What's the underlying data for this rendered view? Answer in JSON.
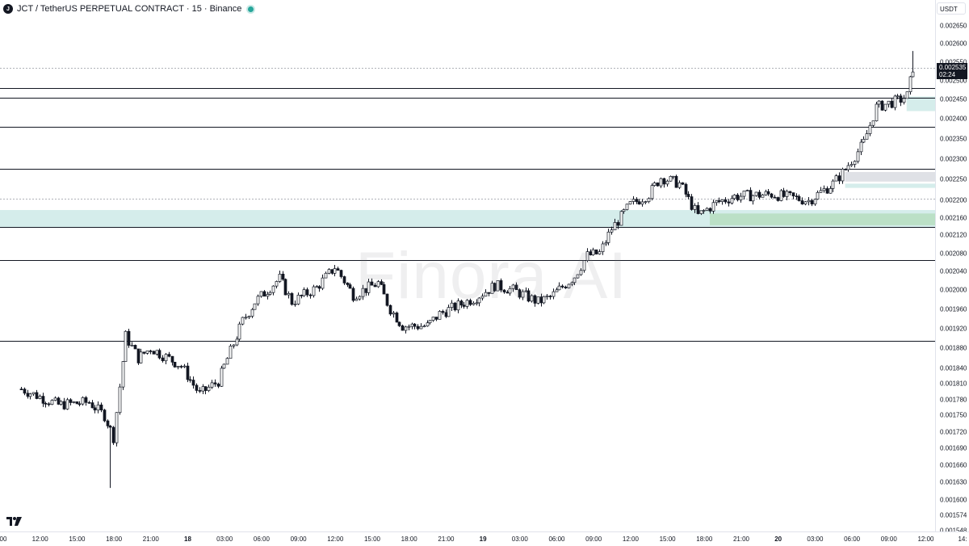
{
  "header": {
    "symbol_icon": "JCT logo",
    "title": "JCT / TetherUS PERPETUAL CONTRACT · 15 · Binance",
    "status": "market-open"
  },
  "watermark": "Finora AI",
  "price_scale": {
    "currency": "USDT",
    "ticks": [
      "0.002650",
      "0.002600",
      "0.002550",
      "0.002500",
      "0.002450",
      "0.002400",
      "0.002350",
      "0.002300",
      "0.002250",
      "0.002200",
      "0.002160",
      "0.002120",
      "0.002080",
      "0.002040",
      "0.002000",
      "0.001960",
      "0.001920",
      "0.001880",
      "0.001840",
      "0.001810",
      "0.001780",
      "0.001750",
      "0.001720",
      "0.001690",
      "0.001660",
      "0.001630",
      "0.001600",
      "0.001574",
      "0.001548"
    ],
    "current_price": "0.002535",
    "countdown": "02:24"
  },
  "time_scale": {
    "ticks": [
      {
        "label": "00",
        "bold": false
      },
      {
        "label": "12:00",
        "bold": false
      },
      {
        "label": "15:00",
        "bold": false
      },
      {
        "label": "18:00",
        "bold": false
      },
      {
        "label": "21:00",
        "bold": false
      },
      {
        "label": "18",
        "bold": true
      },
      {
        "label": "03:00",
        "bold": false
      },
      {
        "label": "06:00",
        "bold": false
      },
      {
        "label": "09:00",
        "bold": false
      },
      {
        "label": "12:00",
        "bold": false
      },
      {
        "label": "15:00",
        "bold": false
      },
      {
        "label": "18:00",
        "bold": false
      },
      {
        "label": "21:00",
        "bold": false
      },
      {
        "label": "19",
        "bold": true
      },
      {
        "label": "03:00",
        "bold": false
      },
      {
        "label": "06:00",
        "bold": false
      },
      {
        "label": "09:00",
        "bold": false
      },
      {
        "label": "12:00",
        "bold": false
      },
      {
        "label": "15:00",
        "bold": false
      },
      {
        "label": "18:00",
        "bold": false
      },
      {
        "label": "21:00",
        "bold": false
      },
      {
        "label": "20",
        "bold": true
      },
      {
        "label": "03:00",
        "bold": false
      },
      {
        "label": "06:00",
        "bold": false
      },
      {
        "label": "09:00",
        "bold": false
      },
      {
        "label": "12:00",
        "bold": false
      },
      {
        "label": "14:",
        "bold": false
      }
    ]
  },
  "colors": {
    "up": "#ffffff",
    "down": "#131722",
    "wick": "#131722",
    "zone_teal": "#b2dfdb",
    "zone_green": "#a5d6a7",
    "zone_gray": "#d1d4dc",
    "level_line": "#131722"
  },
  "chart_data": {
    "type": "candlestick",
    "timeframe": "15",
    "y_scale": "log",
    "close_path": [
      {
        "t": "17 11:00",
        "price": 0.0018
      },
      {
        "t": "17 14:00",
        "price": 0.00177
      },
      {
        "t": "17 16:30",
        "price": 0.001775
      },
      {
        "t": "17 17:45",
        "price": 0.00175
      },
      {
        "t": "17 18:30",
        "price": 0.00171
      },
      {
        "t": "17 19:30",
        "price": 0.001905
      },
      {
        "t": "17 20:30",
        "price": 0.00186
      },
      {
        "t": "17 21:30",
        "price": 0.00188
      },
      {
        "t": "18 00:00",
        "price": 0.001845
      },
      {
        "t": "18 01:30",
        "price": 0.00179
      },
      {
        "t": "18 03:00",
        "price": 0.001815
      },
      {
        "t": "18 05:00",
        "price": 0.001935
      },
      {
        "t": "18 06:00",
        "price": 0.001975
      },
      {
        "t": "18 08:00",
        "price": 0.002025
      },
      {
        "t": "18 09:00",
        "price": 0.001975
      },
      {
        "t": "18 11:00",
        "price": 0.002005
      },
      {
        "t": "18 12:30",
        "price": 0.00205
      },
      {
        "t": "18 14:00",
        "price": 0.00199
      },
      {
        "t": "18 16:00",
        "price": 0.002015
      },
      {
        "t": "18 17:00",
        "price": 0.00196
      },
      {
        "t": "18 18:00",
        "price": 0.001925
      },
      {
        "t": "18 20:00",
        "price": 0.001925
      },
      {
        "t": "18 21:00",
        "price": 0.00195
      },
      {
        "t": "19 00:00",
        "price": 0.001985
      },
      {
        "t": "19 01:30",
        "price": 0.00201
      },
      {
        "t": "19 03:00",
        "price": 0.002
      },
      {
        "t": "19 05:00",
        "price": 0.001975
      },
      {
        "t": "19 06:00",
        "price": 0.001985
      },
      {
        "t": "19 08:00",
        "price": 0.00203
      },
      {
        "t": "19 09:00",
        "price": 0.002075
      },
      {
        "t": "19 10:00",
        "price": 0.00208
      },
      {
        "t": "19 11:00",
        "price": 0.002135
      },
      {
        "t": "19 12:30",
        "price": 0.00219
      },
      {
        "t": "19 14:00",
        "price": 0.002215
      },
      {
        "t": "19 15:00",
        "price": 0.002255
      },
      {
        "t": "19 16:30",
        "price": 0.00224
      },
      {
        "t": "19 18:00",
        "price": 0.002165
      },
      {
        "t": "19 19:30",
        "price": 0.002195
      },
      {
        "t": "19 21:00",
        "price": 0.00221
      },
      {
        "t": "20 00:00",
        "price": 0.002215
      },
      {
        "t": "20 03:00",
        "price": 0.0022
      },
      {
        "t": "20 05:00",
        "price": 0.00224
      },
      {
        "t": "20 06:00",
        "price": 0.002275
      },
      {
        "t": "20 07:30",
        "price": 0.00234
      },
      {
        "t": "20 08:30",
        "price": 0.00243
      },
      {
        "t": "20 09:30",
        "price": 0.00244
      },
      {
        "t": "20 10:30",
        "price": 0.00245
      },
      {
        "t": "20 11:00",
        "price": 0.00246
      },
      {
        "t": "20 11:30",
        "price": 0.002535
      }
    ],
    "extremes": {
      "low": 0.00162,
      "low_time": "17 18:15",
      "high": 0.00258,
      "high_time": "20 11:30"
    },
    "horizontal_levels": [
      0.002535,
      0.00248,
      0.002455,
      0.00238,
      0.002275,
      0.002205,
      0.00214,
      0.002065,
      0.001895
    ],
    "dotted_levels": [
      0.002535,
      0.002205
    ],
    "zones": [
      {
        "from": 0.002138,
        "to": 0.002178,
        "start": "left",
        "color": "teal"
      },
      {
        "from": 0.002143,
        "to": 0.00217,
        "start": "19 19:00",
        "color": "green"
      },
      {
        "from": 0.00242,
        "to": 0.002458,
        "start": "20 11:00",
        "color": "teal"
      },
      {
        "from": 0.00223,
        "to": 0.00224,
        "start": "20 06:00",
        "color": "teal"
      },
      {
        "from": 0.002245,
        "to": 0.002268,
        "start": "20 06:00",
        "color": "gray"
      }
    ],
    "grid": false
  }
}
